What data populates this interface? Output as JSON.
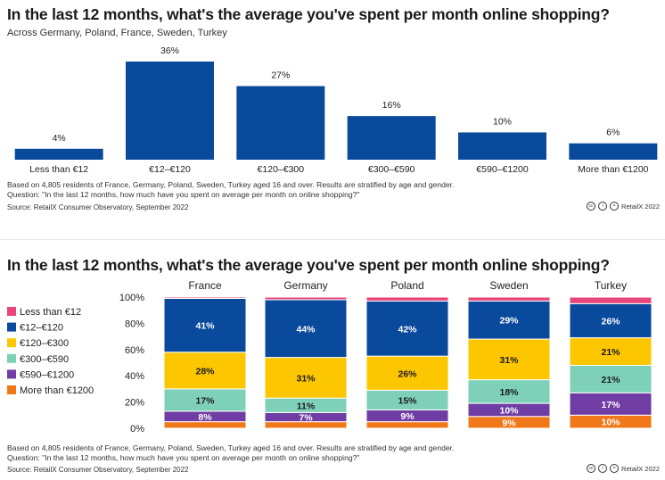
{
  "colors": {
    "navy": "#0a4a9c",
    "less_than_12": "#e8457a",
    "12_120": "#0a4a9c",
    "120_300": "#fdc700",
    "300_590": "#7ed1b8",
    "590_1200": "#6f3da3",
    "more_1200": "#f07818"
  },
  "top": {
    "title": "In the last 12 months, what's the average you've spent per month online shopping?",
    "subtitle": "Across Germany, Poland, France, Sweden, Turkey",
    "note_line1": "Based on 4,805 residents of France, Germany, Poland, Sweden, Turkey aged 16 and over. Results are stratified by age and gender.",
    "note_line2": "Question: \"In the last 12 months, how much have you spent on average per month on online shopping?\"",
    "source": "Source: RetailX Consumer Observatory, September 2022",
    "credit": "RetailX 2022"
  },
  "bottom": {
    "title": "In the last 12 months, what's the average you've spent per month online shopping?",
    "note_line1": "Based on 4,805 residents of France, Germany, Poland, Sweden, Turkey aged 16 and over. Results are stratified by age and gender.",
    "note_line2": "Question: \"In the last 12 months, how much have you spent on average per month on online shopping?\"",
    "source": "Source: RetailX Consumer Observatory, September 2022",
    "credit": "RetailX 2022"
  },
  "chart_data": [
    {
      "type": "bar",
      "title": "In the last 12 months, what's the average you've spent per month online shopping?",
      "subtitle": "Across Germany, Poland, France, Sweden, Turkey",
      "categories": [
        "Less than €12",
        "€12–€120",
        "€120–€300",
        "€300–€590",
        "€590–€1200",
        "More than €1200"
      ],
      "values": [
        4,
        36,
        27,
        16,
        10,
        6
      ],
      "value_labels": [
        "4%",
        "36%",
        "27%",
        "16%",
        "10%",
        "6%"
      ],
      "ylim": [
        0,
        36
      ],
      "grid": false
    },
    {
      "type": "bar",
      "stacked": true,
      "title": "In the last 12 months, what's the average you've spent per month online shopping?",
      "categories": [
        "France",
        "Germany",
        "Poland",
        "Sweden",
        "Turkey"
      ],
      "ylim": [
        0,
        100
      ],
      "yticks": [
        "0%",
        "20%",
        "40%",
        "60%",
        "80%",
        "100%"
      ],
      "legend_position": "left",
      "series": [
        {
          "name": "More than €1200",
          "key": "more_1200",
          "values": [
            5,
            5,
            5,
            9,
            10
          ],
          "labels": [
            "",
            "",
            "",
            "9%",
            "10%"
          ]
        },
        {
          "name": "€590–€1200",
          "key": "590_1200",
          "values": [
            8,
            7,
            9,
            10,
            17
          ],
          "labels": [
            "8%",
            "7%",
            "9%",
            "10%",
            "17%"
          ]
        },
        {
          "name": "€300–€590",
          "key": "300_590",
          "values": [
            17,
            11,
            15,
            18,
            21
          ],
          "labels": [
            "17%",
            "11%",
            "15%",
            "18%",
            "21%"
          ]
        },
        {
          "name": "€120–€300",
          "key": "120_300",
          "values": [
            28,
            31,
            26,
            31,
            21
          ],
          "labels": [
            "28%",
            "31%",
            "26%",
            "31%",
            "21%"
          ]
        },
        {
          "name": "€12–€120",
          "key": "12_120",
          "values": [
            41,
            44,
            42,
            29,
            26
          ],
          "labels": [
            "41%",
            "44%",
            "42%",
            "29%",
            "26%"
          ]
        },
        {
          "name": "Less than €12",
          "key": "less_than_12",
          "values": [
            1,
            2,
            3,
            3,
            5
          ],
          "labels": [
            "",
            "",
            "",
            "",
            ""
          ]
        }
      ],
      "legend_order": [
        "Less than €12",
        "€12–€120",
        "€120–€300",
        "€300–€590",
        "€590–€1200",
        "More than €1200"
      ]
    }
  ]
}
